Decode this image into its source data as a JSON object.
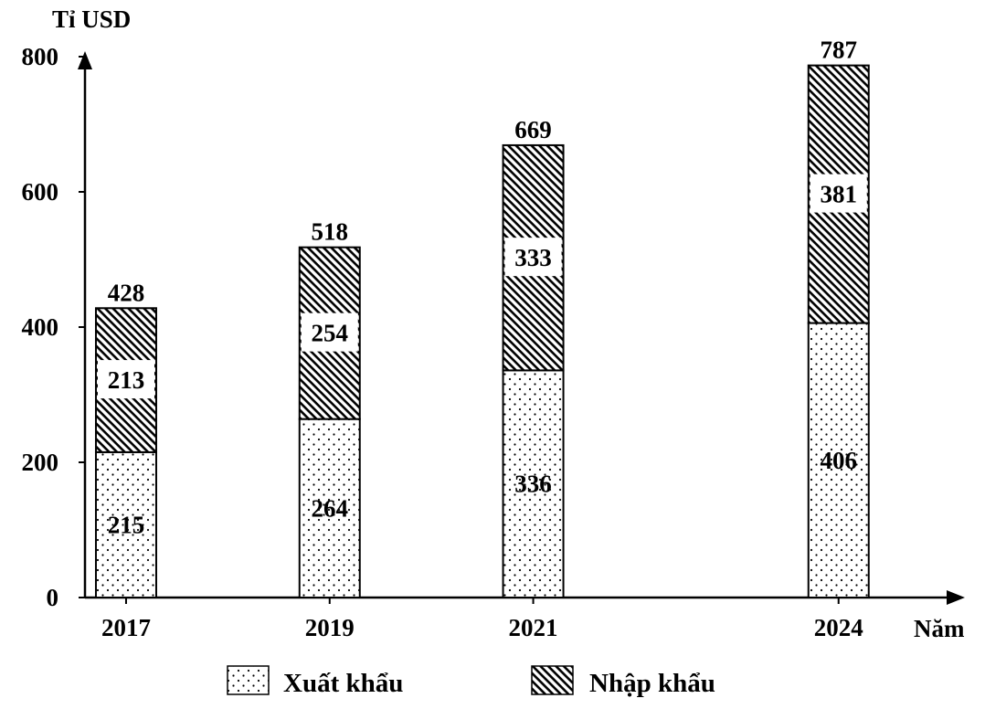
{
  "chart_data": {
    "type": "bar",
    "stacked": true,
    "ylabel": "Tỉ USD",
    "xlabel": "Năm",
    "ylim": [
      0,
      800
    ],
    "yticks": [
      "0",
      "200",
      "400",
      "600",
      "800"
    ],
    "categories": [
      "2017",
      "2019",
      "2021",
      "2024"
    ],
    "x": [
      2017,
      2019,
      2021,
      2024
    ],
    "series": [
      {
        "name": "Xuất khẩu",
        "values": [
          215,
          264,
          336,
          406
        ],
        "pattern": "dots"
      },
      {
        "name": "Nhập khẩu",
        "values": [
          213,
          254,
          333,
          381
        ],
        "pattern": "hatch"
      }
    ],
    "totals": [
      428,
      518,
      669,
      787
    ],
    "legend_position": "bottom",
    "grid": false
  }
}
